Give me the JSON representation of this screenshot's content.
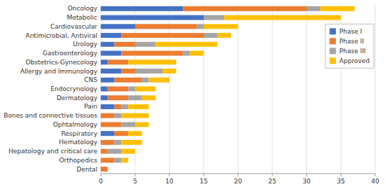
{
  "chart_data": {
    "type": "bar",
    "orientation": "horizontal",
    "stacked": true,
    "categories": [
      "Oncology",
      "Metabolic",
      "Cardiovascular",
      "Antimicrobial, Antiviral",
      "Urology",
      "Gastroenterology",
      "Obstetrics-Gynecology",
      "Allergy and Immunology",
      "CNS",
      "Endocrynology",
      "Dermatology",
      "Pain",
      "Bones and connective tissues",
      "Ophtalmology",
      "Respiratory",
      "Hematology",
      "Hepatology and critical care",
      "Orthopedics",
      "Dental"
    ],
    "series": [
      {
        "name": "Phase I",
        "color": "#4472c4",
        "values": [
          12,
          15,
          5,
          3,
          2,
          3,
          1,
          3,
          2,
          1,
          1,
          2,
          0,
          0,
          2,
          0,
          0,
          0,
          0
        ]
      },
      {
        "name": "Phase II",
        "color": "#ed7d31",
        "values": [
          18,
          0,
          9,
          12,
          3,
          9,
          3,
          2,
          4,
          3,
          3,
          1,
          2,
          3,
          2,
          2,
          1,
          2,
          1
        ]
      },
      {
        "name": "Phase III",
        "color": "#a5a5a5",
        "values": [
          2,
          3,
          1,
          2,
          3,
          1,
          0,
          4,
          1,
          1,
          2,
          1,
          1,
          2,
          0,
          1,
          2,
          1,
          0
        ]
      },
      {
        "name": "Approved",
        "color": "#ffc000",
        "values": [
          5,
          17,
          5,
          2,
          9,
          2,
          7,
          2,
          3,
          3,
          2,
          3,
          4,
          2,
          2,
          3,
          2,
          1,
          0
        ]
      }
    ],
    "xlim": [
      0,
      40
    ],
    "xticks": [
      0,
      5,
      10,
      15,
      20,
      25,
      30,
      35,
      40
    ],
    "grid": true,
    "legend": "upper right"
  }
}
